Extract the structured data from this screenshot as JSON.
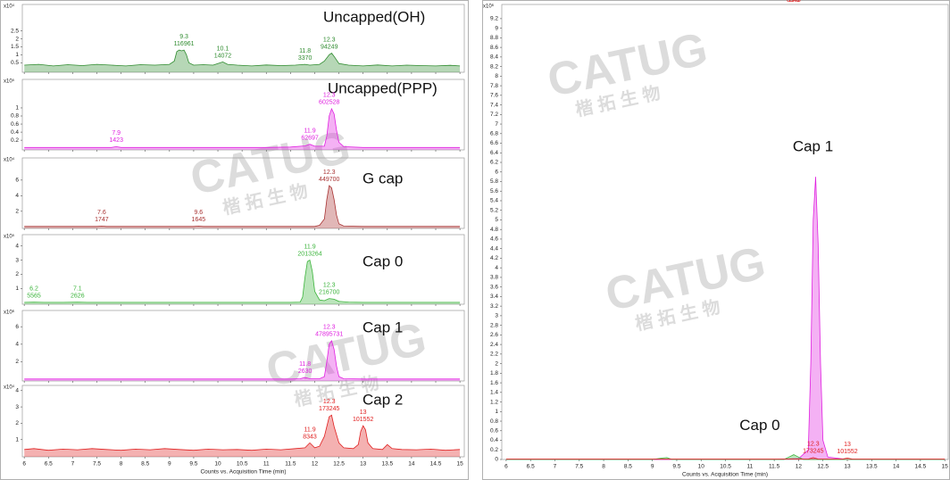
{
  "watermark": {
    "logo": "CATUG",
    "text": "楷 拓 生 物"
  },
  "chart_data": [
    {
      "type": "area",
      "title": "Uncapped(OH)",
      "y_scale_label": "x10⁴",
      "color": "#2e8b2e",
      "xlim": [
        5.96,
        15.09
      ],
      "xticks": [
        6,
        6.5,
        7,
        7.5,
        8,
        8.5,
        9,
        9.5,
        10,
        10.5,
        11,
        11.5,
        12,
        12.5,
        13,
        13.5,
        14,
        14.5,
        15
      ],
      "ylim": [
        -0.1,
        4
      ],
      "yticks": [
        0.5,
        1,
        1.5,
        2,
        2.5
      ],
      "x": [
        6,
        6.3,
        6.6,
        6.9,
        7.2,
        7.5,
        7.8,
        8.1,
        8.4,
        8.7,
        9.0,
        9.1,
        9.15,
        9.2,
        9.25,
        9.3,
        9.35,
        9.4,
        9.5,
        9.7,
        9.9,
        10.0,
        10.1,
        10.2,
        10.4,
        10.7,
        11.0,
        11.3,
        11.6,
        11.8,
        11.9,
        12.1,
        12.2,
        12.3,
        12.35,
        12.4,
        12.5,
        12.7,
        13.0,
        13.3,
        13.6,
        13.9,
        14.2,
        14.5,
        14.8,
        15
      ],
      "values": [
        0.35,
        0.4,
        0.3,
        0.38,
        0.32,
        0.4,
        0.35,
        0.3,
        0.38,
        0.35,
        0.4,
        0.6,
        1.2,
        1.3,
        1.25,
        1.3,
        1.0,
        0.5,
        0.35,
        0.38,
        0.35,
        0.45,
        0.55,
        0.4,
        0.35,
        0.3,
        0.36,
        0.32,
        0.35,
        0.4,
        0.35,
        0.4,
        0.6,
        1.0,
        1.1,
        0.9,
        0.45,
        0.35,
        0.3,
        0.36,
        0.3,
        0.35,
        0.32,
        0.3,
        0.34,
        0.3
      ],
      "peaks": [
        {
          "rt": 9.3,
          "area": 116961
        },
        {
          "rt": 10.1,
          "area": 14072
        },
        {
          "rt": 11.8,
          "area": 3370
        },
        {
          "rt": 12.3,
          "area": 94249
        }
      ]
    },
    {
      "type": "area",
      "title": "Uncapped(PPP)",
      "y_scale_label": "x10⁵",
      "color": "#e020e0",
      "xlim": [
        5.96,
        15.09
      ],
      "xticks": [
        6,
        6.5,
        7,
        7.5,
        8,
        8.5,
        9,
        9.5,
        10,
        10.5,
        11,
        11.5,
        12,
        12.5,
        13,
        13.5,
        14,
        14.5,
        15
      ],
      "ylim": [
        -0.04,
        1.64
      ],
      "yticks": [
        0.2,
        0.4,
        0.6,
        0.8,
        1
      ],
      "x": [
        6,
        6.5,
        7,
        7.5,
        7.8,
        7.9,
        8.0,
        8.5,
        9,
        9.5,
        10,
        10.5,
        11,
        11.5,
        11.8,
        11.9,
        12.0,
        12.2,
        12.25,
        12.3,
        12.35,
        12.4,
        12.45,
        12.5,
        12.6,
        13,
        13.5,
        14,
        14.5,
        15
      ],
      "values": [
        0.02,
        0.02,
        0.02,
        0.02,
        0.02,
        0.04,
        0.02,
        0.02,
        0.02,
        0.02,
        0.02,
        0.02,
        0.02,
        0.03,
        0.06,
        0.1,
        0.05,
        0.05,
        0.3,
        0.8,
        0.98,
        0.85,
        0.45,
        0.15,
        0.04,
        0.02,
        0.02,
        0.02,
        0.02,
        0.02
      ],
      "peaks": [
        {
          "rt": 7.9,
          "area": 1423
        },
        {
          "rt": 11.9,
          "area": 62697
        },
        {
          "rt": 12.3,
          "area": 602528
        }
      ]
    },
    {
      "type": "area",
      "title": "G cap",
      "y_scale_label": "x10⁴",
      "color": "#a83232",
      "xlim": [
        5.96,
        15.09
      ],
      "xticks": [
        6,
        6.5,
        7,
        7.5,
        8,
        8.5,
        9,
        9.5,
        10,
        10.5,
        11,
        11.5,
        12,
        12.5,
        13,
        13.5,
        14,
        14.5,
        15
      ],
      "ylim": [
        -0.2,
        8.5
      ],
      "yticks": [
        2,
        4,
        6
      ],
      "x": [
        6,
        6.5,
        7,
        7.5,
        7.6,
        7.7,
        8,
        8.5,
        9,
        9.5,
        9.6,
        9.7,
        10,
        10.5,
        11,
        11.5,
        12,
        12.1,
        12.2,
        12.25,
        12.3,
        12.35,
        12.4,
        12.45,
        12.5,
        12.6,
        13,
        13.5,
        14,
        14.5,
        15
      ],
      "values": [
        0.05,
        0.05,
        0.05,
        0.05,
        0.1,
        0.05,
        0.05,
        0.05,
        0.05,
        0.05,
        0.1,
        0.05,
        0.05,
        0.05,
        0.05,
        0.05,
        0.05,
        0.2,
        1.0,
        3.5,
        5.3,
        5.0,
        3.5,
        1.5,
        0.4,
        0.1,
        0.05,
        0.05,
        0.05,
        0.05,
        0.05
      ],
      "peaks": [
        {
          "rt": 7.6,
          "area": 1747
        },
        {
          "rt": 9.6,
          "area": 1645
        },
        {
          "rt": 12.3,
          "area": 449700
        }
      ]
    },
    {
      "type": "area",
      "title": "Cap 0",
      "y_scale_label": "x10⁵",
      "color": "#3cb43c",
      "xlim": [
        5.96,
        15.09
      ],
      "xticks": [
        6,
        6.5,
        7,
        7.5,
        8,
        8.5,
        9,
        9.5,
        10,
        10.5,
        11,
        11.5,
        12,
        12.5,
        13,
        13.5,
        14,
        14.5,
        15
      ],
      "ylim": [
        -0.1,
        4.6
      ],
      "yticks": [
        1,
        2,
        3,
        4
      ],
      "x": [
        6,
        6.2,
        6.4,
        6.8,
        7.1,
        7.3,
        7.8,
        8.5,
        9,
        9.5,
        10,
        10.5,
        11,
        11.5,
        11.7,
        11.75,
        11.8,
        11.85,
        11.9,
        11.95,
        12.0,
        12.1,
        12.2,
        12.3,
        12.4,
        12.5,
        12.7,
        13,
        13.5,
        14,
        14.5,
        15
      ],
      "values": [
        0.03,
        0.05,
        0.03,
        0.03,
        0.05,
        0.03,
        0.03,
        0.03,
        0.03,
        0.03,
        0.03,
        0.03,
        0.03,
        0.03,
        0.05,
        0.4,
        1.8,
        2.9,
        3.0,
        2.2,
        0.8,
        0.2,
        0.15,
        0.3,
        0.25,
        0.1,
        0.05,
        0.03,
        0.03,
        0.03,
        0.03,
        0.03
      ],
      "peaks": [
        {
          "rt": 6.2,
          "area": 5565
        },
        {
          "rt": 7.1,
          "area": 2626
        },
        {
          "rt": 11.9,
          "area": 2013264
        },
        {
          "rt": 12.3,
          "area": 216700
        }
      ]
    },
    {
      "type": "area",
      "title": "Cap 1",
      "y_scale_label": "x10⁶",
      "color": "#e020e0",
      "xlim": [
        5.96,
        15.09
      ],
      "xticks": [
        6,
        6.5,
        7,
        7.5,
        8,
        8.5,
        9,
        9.5,
        10,
        10.5,
        11,
        11.5,
        12,
        12.5,
        13,
        13.5,
        14,
        14.5,
        15
      ],
      "ylim": [
        -0.2,
        7.55
      ],
      "yticks": [
        2,
        4,
        6
      ],
      "x": [
        6,
        7,
        8,
        9,
        10,
        11,
        11.5,
        11.7,
        11.8,
        11.9,
        12.1,
        12.2,
        12.25,
        12.3,
        12.35,
        12.4,
        12.45,
        12.5,
        12.6,
        13,
        13.5,
        14,
        15
      ],
      "values": [
        0.02,
        0.02,
        0.02,
        0.02,
        0.02,
        0.02,
        0.02,
        0.05,
        0.2,
        0.05,
        0.05,
        0.3,
        2.0,
        4.0,
        4.4,
        3.4,
        1.5,
        0.3,
        0.05,
        0.02,
        0.02,
        0.02,
        0.02
      ],
      "peaks": [
        {
          "rt": 11.8,
          "area": 2630
        },
        {
          "rt": 12.3,
          "area": 47895731
        }
      ]
    },
    {
      "type": "area",
      "title": "Cap 2",
      "y_scale_label": "x10⁴",
      "color": "#e02020",
      "x_label": "Counts vs. Acquisition Time (min)",
      "xlim": [
        5.96,
        15.09
      ],
      "xticks": [
        6,
        6.5,
        7,
        7.5,
        8,
        8.5,
        9,
        9.5,
        10,
        10.5,
        11,
        11.5,
        12,
        12.5,
        13,
        13.5,
        14,
        14.5,
        15
      ],
      "ylim": [
        -0.05,
        4.15
      ],
      "yticks": [
        1,
        2,
        3,
        4
      ],
      "x": [
        6,
        6.2,
        6.5,
        6.8,
        7.1,
        7.4,
        7.7,
        8,
        8.3,
        8.6,
        8.9,
        9.2,
        9.5,
        9.8,
        10.1,
        10.4,
        10.7,
        11,
        11.3,
        11.6,
        11.8,
        11.9,
        12.0,
        12.1,
        12.2,
        12.3,
        12.35,
        12.4,
        12.5,
        12.6,
        12.8,
        12.9,
        12.95,
        13.0,
        13.05,
        13.1,
        13.2,
        13.4,
        13.5,
        13.6,
        13.8,
        14.1,
        14.4,
        14.7,
        15
      ],
      "values": [
        0.4,
        0.45,
        0.35,
        0.42,
        0.38,
        0.45,
        0.4,
        0.35,
        0.42,
        0.38,
        0.45,
        0.4,
        0.35,
        0.42,
        0.38,
        0.4,
        0.35,
        0.42,
        0.38,
        0.45,
        0.5,
        0.8,
        0.5,
        0.6,
        1.2,
        2.4,
        2.5,
        1.8,
        0.8,
        0.5,
        0.45,
        0.7,
        1.5,
        1.85,
        1.6,
        0.8,
        0.45,
        0.4,
        0.7,
        0.45,
        0.4,
        0.38,
        0.42,
        0.35,
        0.4
      ],
      "peaks": [
        {
          "rt": 11.9,
          "area": 8343
        },
        {
          "rt": 12.3,
          "area": 173245
        },
        {
          "rt": 13.0,
          "area": 101552
        }
      ]
    },
    {
      "type": "area",
      "y_scale_label": "x10⁶",
      "x_label": "Counts vs. Acquisition Time (min)",
      "xlim": [
        5.91,
        15.07
      ],
      "xticks": [
        6,
        6.5,
        7,
        7.5,
        8,
        8.5,
        9,
        9.5,
        10,
        10.5,
        11,
        11.5,
        12,
        12.5,
        13,
        13.5,
        14,
        14.5,
        15
      ],
      "ylim": [
        0,
        9.44
      ],
      "yticks": [
        0,
        0.2,
        0.4,
        0.6,
        0.8,
        1,
        1.2,
        1.4,
        1.6,
        1.8,
        2,
        2.2,
        2.4,
        2.6,
        2.8,
        3,
        3.2,
        3.4,
        3.6,
        3.8,
        4,
        4.2,
        4.4,
        4.6,
        4.8,
        5,
        5.2,
        5.4,
        5.6,
        5.8,
        6,
        6.2,
        6.4,
        6.6,
        6.8,
        7,
        7.2,
        7.4,
        7.6,
        7.8,
        8,
        8.2,
        8.4,
        8.6,
        8.8,
        9,
        9.2
      ],
      "series": [
        {
          "name": "Cap 1",
          "color": "#e020e0",
          "x": [
            6,
            7,
            8,
            9,
            10,
            11,
            11.5,
            12,
            12.2,
            12.25,
            12.3,
            12.35,
            12.4,
            12.45,
            12.5,
            12.6,
            13,
            14,
            15
          ],
          "values": [
            0,
            0,
            0,
            0,
            0,
            0,
            0,
            0.02,
            0.2,
            2.0,
            5.0,
            5.9,
            4.5,
            2.0,
            0.4,
            0.05,
            0,
            0,
            0
          ]
        },
        {
          "name": "Cap 0",
          "color": "#3cb43c",
          "x": [
            6,
            9,
            9.2,
            9.3,
            9.4,
            11.7,
            11.8,
            11.9,
            12.0,
            12.1,
            15
          ],
          "values": [
            0,
            0,
            0.03,
            0.04,
            0,
            0,
            0.05,
            0.1,
            0.05,
            0,
            0
          ]
        },
        {
          "color": "#e02020",
          "x": [
            6,
            12.2,
            12.3,
            12.4,
            12.9,
            13.0,
            13.1,
            15
          ],
          "values": [
            0.01,
            0.01,
            0.04,
            0.01,
            0.01,
            0.03,
            0.01,
            0.01
          ],
          "peaks": [
            {
              "rt": 11.9,
              "area": 8343
            },
            {
              "rt": 12.3,
              "area": 173245
            },
            {
              "rt": 13.0,
              "area": 101552
            }
          ]
        }
      ]
    }
  ]
}
